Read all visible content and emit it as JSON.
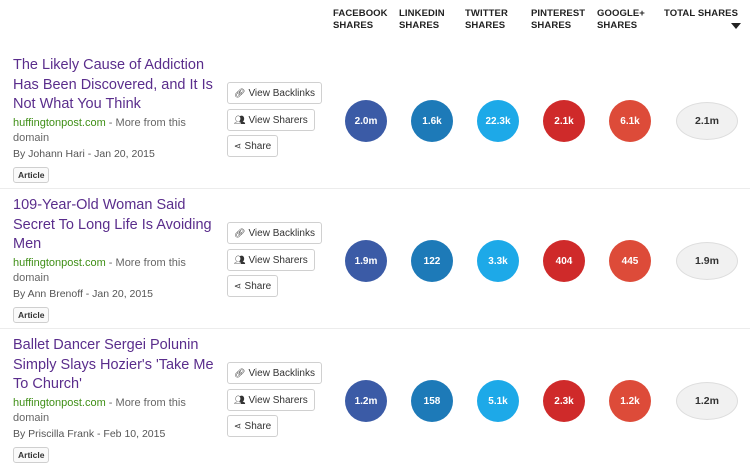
{
  "header": {
    "columns": [
      {
        "line1": "FACEBOOK",
        "line2": "SHARES"
      },
      {
        "line1": "LINKEDIN",
        "line2": "SHARES"
      },
      {
        "line1": "TWITTER",
        "line2": "SHARES"
      },
      {
        "line1": "PINTEREST",
        "line2": "SHARES"
      },
      {
        "line1": "GOOGLE+",
        "line2": "SHARES"
      },
      {
        "line1": "TOTAL SHARES",
        "line2": ""
      }
    ],
    "sort_icon": "caret-down-icon"
  },
  "buttons": {
    "backlinks": "View Backlinks",
    "sharers": "View Sharers",
    "share": "Share"
  },
  "colors": {
    "title_link": "#5a2d8c",
    "domain_link": "#3f8f16",
    "facebook": "#3b5ba6",
    "linkedin": "#1d7ab8",
    "twitter": "#1da9e8",
    "pinterest": "#cf2a2a",
    "googleplus": "#dd4b39",
    "total": "#f1f1f1"
  },
  "articles": [
    {
      "title": "The Likely Cause of Addiction Has Been Discovered, and It Is Not What You Think",
      "domain": "huffingtonpost.com",
      "more": " - More from this domain",
      "byline": "By Johann Hari - Jan 20, 2015",
      "type": "Article",
      "facebook": "2.0m",
      "linkedin": "1.6k",
      "twitter": "22.3k",
      "pinterest": "2.1k",
      "googleplus": "6.1k",
      "total": "2.1m"
    },
    {
      "title": "109-Year-Old Woman Said Secret To Long Life Is Avoiding Men",
      "domain": "huffingtonpost.com",
      "more": " - More from this domain",
      "byline": "By Ann Brenoff - Jan 20, 2015",
      "type": "Article",
      "facebook": "1.9m",
      "linkedin": "122",
      "twitter": "3.3k",
      "pinterest": "404",
      "googleplus": "445",
      "total": "1.9m"
    },
    {
      "title": "Ballet Dancer Sergei Polunin Simply Slays Hozier's 'Take Me To Church'",
      "domain": "huffingtonpost.com",
      "more": " - More from this domain",
      "byline": "By Priscilla Frank - Feb 10, 2015",
      "type": "Article",
      "facebook": "1.2m",
      "linkedin": "158",
      "twitter": "5.1k",
      "pinterest": "2.3k",
      "googleplus": "1.2k",
      "total": "1.2m"
    }
  ]
}
